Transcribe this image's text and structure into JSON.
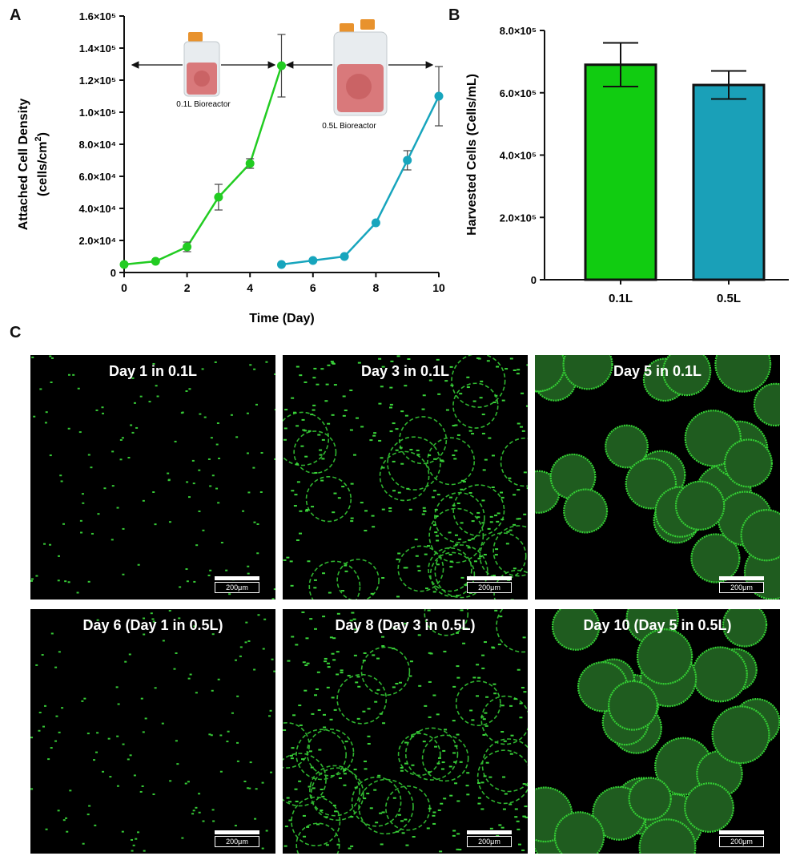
{
  "panel_labels": {
    "a": "A",
    "b": "B",
    "c": "C"
  },
  "chart_data": [
    {
      "type": "line",
      "panel": "A",
      "xlabel": "Time (Day)",
      "ylabel_line1": "Attached Cell Density",
      "ylabel_line2": "(cells/cm",
      "ylabel_sup": "2",
      "ylabel_close": ")",
      "xlim": [
        0,
        10
      ],
      "ylim": [
        0,
        160000
      ],
      "x_ticks": [
        0,
        2,
        4,
        6,
        8,
        10
      ],
      "y_ticks": [
        {
          "value": 0,
          "label": "0"
        },
        {
          "value": 20000,
          "label": "2.0×10⁴"
        },
        {
          "value": 40000,
          "label": "4.0×10⁴"
        },
        {
          "value": 60000,
          "label": "6.0×10⁴"
        },
        {
          "value": 80000,
          "label": "8.0×10⁴"
        },
        {
          "value": 100000,
          "label": "1.0×10⁵"
        },
        {
          "value": 120000,
          "label": "1.2×10⁵"
        },
        {
          "value": 140000,
          "label": "1.4×10⁵"
        },
        {
          "value": 160000,
          "label": "1.6×10⁵"
        }
      ],
      "series": [
        {
          "name": "0.1L Bioreactor",
          "color": "#22cc22",
          "x": [
            0,
            1,
            2,
            3,
            4,
            5
          ],
          "y": [
            5000,
            7000,
            16000,
            47000,
            68000,
            129000
          ],
          "err": [
            0,
            0,
            3000,
            8000,
            3000,
            19500
          ]
        },
        {
          "name": "0.5L Bioreactor",
          "color": "#17a5bd",
          "x": [
            5,
            6,
            7,
            8,
            9,
            10
          ],
          "y": [
            5000,
            7500,
            10000,
            31000,
            70000,
            110000
          ],
          "err": [
            0,
            0,
            0,
            0,
            6000,
            18500
          ]
        }
      ],
      "annotations": {
        "left_label": "0.1L Bioreactor",
        "right_label": "0.5L Bioreactor"
      }
    },
    {
      "type": "bar",
      "panel": "B",
      "categories": [
        "0.1L",
        "0.5L"
      ],
      "values": [
        690000,
        625000
      ],
      "errors": [
        70000,
        45000
      ],
      "colors": [
        "#11cc11",
        "#1aa0b8"
      ],
      "ylabel": "Harvested Cells (Cells/mL)",
      "ylim": [
        0,
        800000
      ],
      "y_ticks": [
        {
          "value": 0,
          "label": "0"
        },
        {
          "value": 200000,
          "label": "2.0×10⁵"
        },
        {
          "value": 400000,
          "label": "4.0×10⁵"
        },
        {
          "value": 600000,
          "label": "6.0×10⁵"
        },
        {
          "value": 800000,
          "label": "8.0×10⁵"
        }
      ]
    }
  ],
  "micrographs": [
    {
      "caption": "Day 1 in  0.1L",
      "scale": "200μm",
      "density": "sparse"
    },
    {
      "caption": "Day 3 in 0.1L",
      "scale": "200μm",
      "density": "medium"
    },
    {
      "caption": "Day 5 in 0.1L",
      "scale": "200μm",
      "density": "dense"
    },
    {
      "caption": "Day 6 (Day 1 in 0.5L)",
      "scale": "200μm",
      "density": "sparse"
    },
    {
      "caption": "Day 8 (Day 3 in 0.5L)",
      "scale": "200μm",
      "density": "medium"
    },
    {
      "caption": "Day 10 (Day 5 in 0.5L)",
      "scale": "200μm",
      "density": "dense"
    }
  ]
}
